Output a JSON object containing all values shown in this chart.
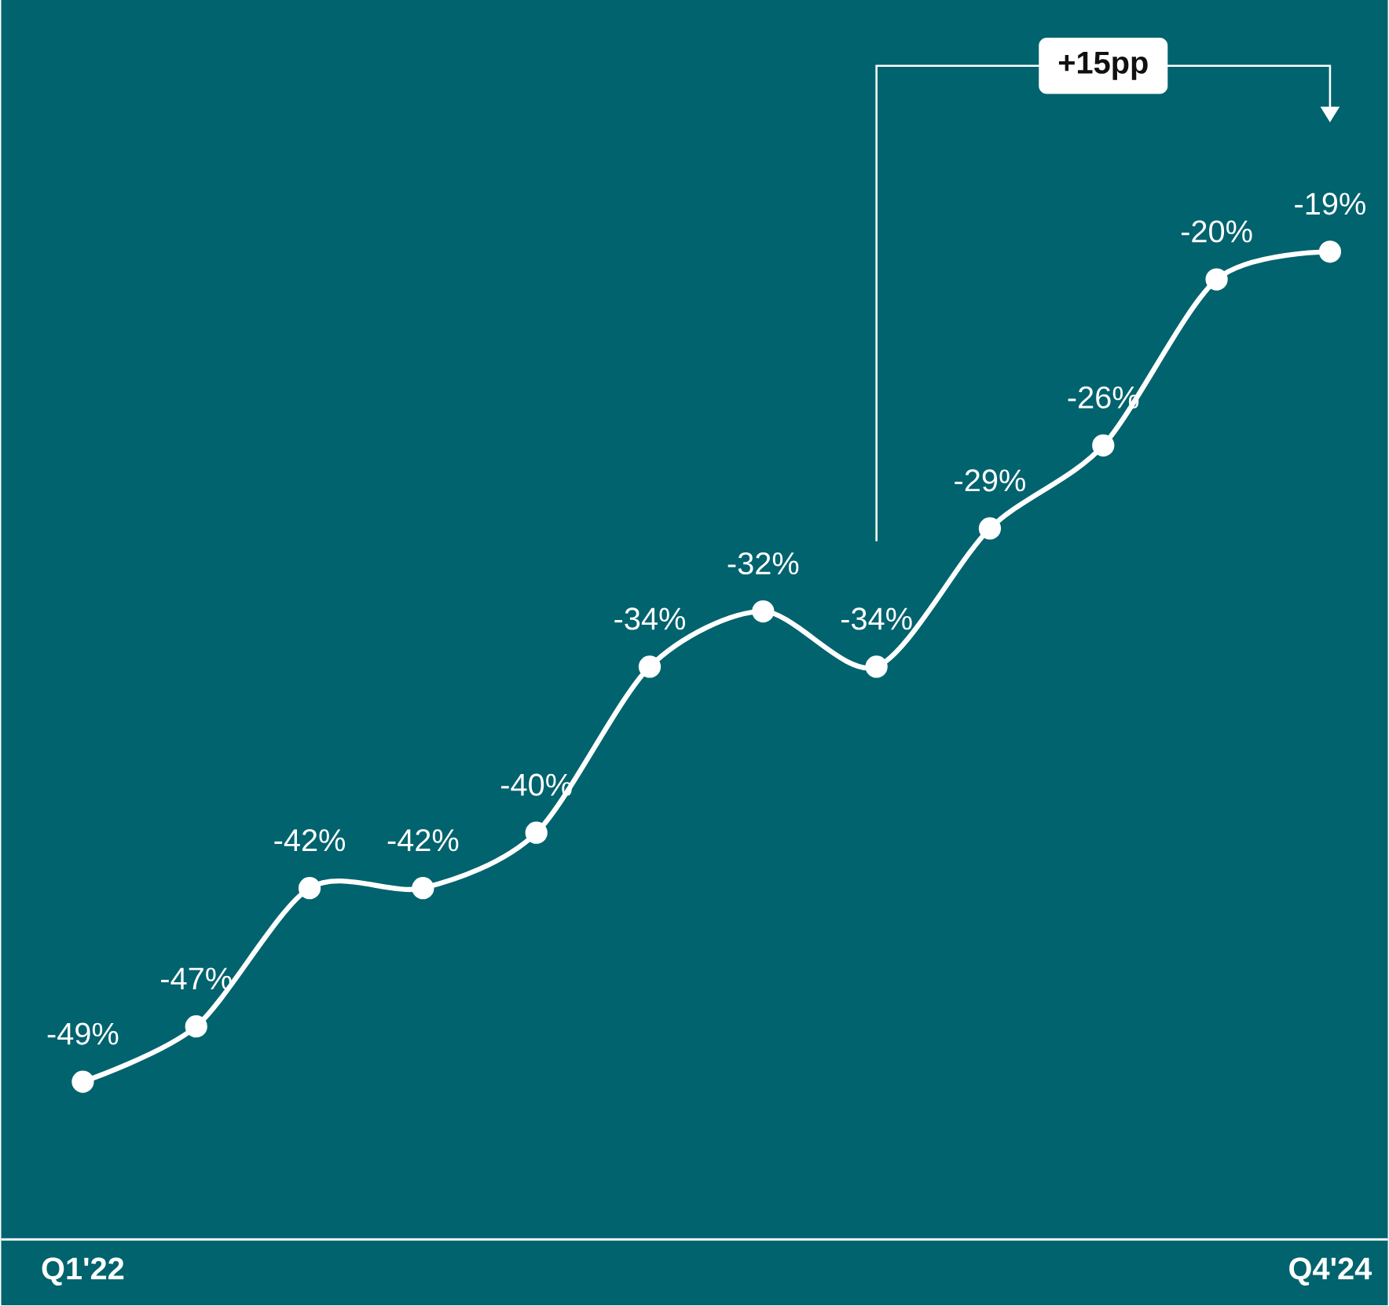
{
  "chart_data": {
    "type": "line",
    "categories": [
      "Q1'22",
      null,
      null,
      null,
      null,
      null,
      null,
      null,
      null,
      null,
      null,
      "Q4'24"
    ],
    "values": [
      -49,
      -47,
      -42,
      -42,
      -40,
      -34,
      -32,
      -34,
      -29,
      -26,
      -20,
      -19
    ],
    "value_labels": [
      "-49%",
      "-47%",
      "-42%",
      "-42%",
      "-40%",
      "-34%",
      "-32%",
      "-34%",
      "-29%",
      "-26%",
      "-20%",
      "-19%"
    ],
    "color": "#ffffff",
    "marker": "circle",
    "ylim": [
      -54.7,
      -9.9
    ],
    "annotations": [
      "+15pp"
    ]
  }
}
